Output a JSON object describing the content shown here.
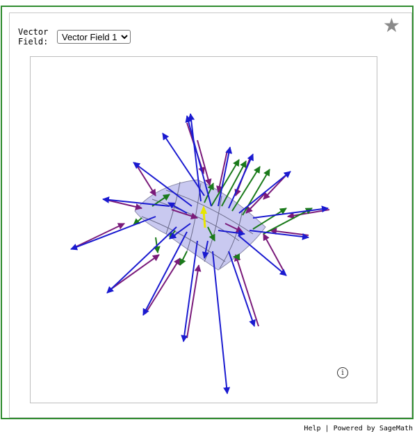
{
  "control": {
    "label": "Vector\nField:",
    "selected": "Vector Field 1",
    "options": [
      "Vector Field 1"
    ]
  },
  "icons": {
    "favorite": "star-icon",
    "info": "info-icon"
  },
  "footer": {
    "help": "Help",
    "separator": "|",
    "powered": "Powered by SageMath"
  },
  "colors": {
    "frame": "#2e8b2e",
    "surface": "#c8c8ee",
    "field_blue": "#1a1ad0",
    "field_purple": "#7a1a7a",
    "field_green": "#1a7a1a",
    "axis_yellow": "#e6e600"
  }
}
